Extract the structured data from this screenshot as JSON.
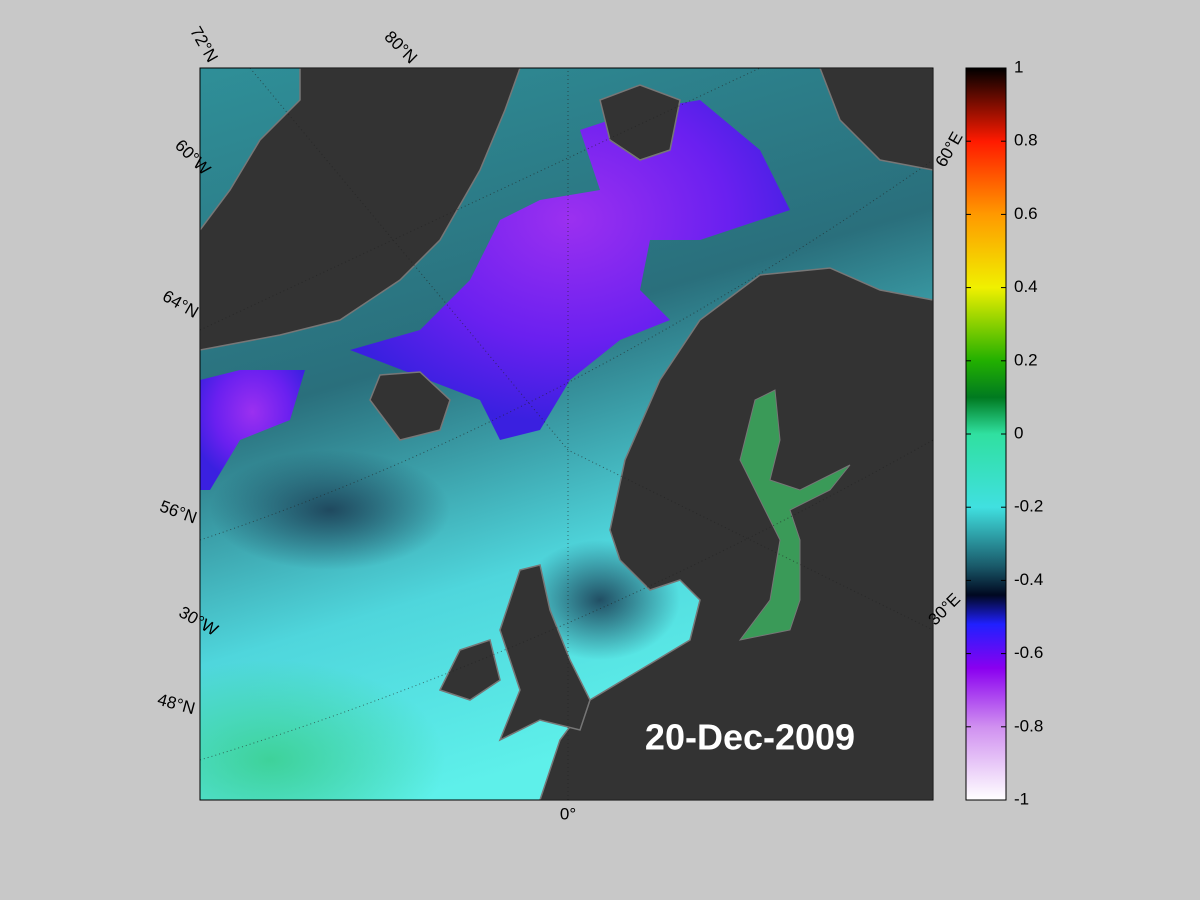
{
  "map": {
    "graticule_labels": [
      "72°N",
      "80°N",
      "60°W",
      "64°N",
      "56°N",
      "30°W",
      "48°N",
      "0°",
      "60°E",
      "30°E"
    ],
    "date": "20-Dec-2009"
  },
  "colorbar": {
    "lim": [
      -1,
      1
    ],
    "ticks": [
      1,
      0.8,
      0.6,
      0.4,
      0.2,
      0,
      -0.2,
      -0.4,
      -0.6,
      -0.8,
      -1
    ]
  }
}
